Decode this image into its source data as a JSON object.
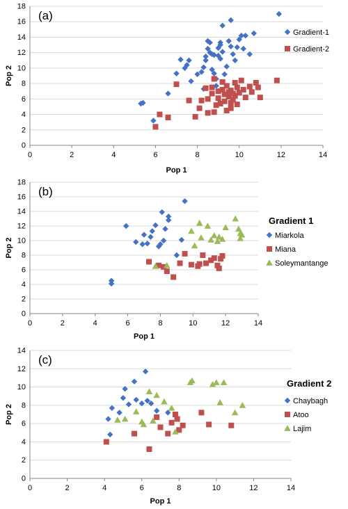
{
  "chart_data": [
    {
      "panel": "(a)",
      "type": "scatter",
      "title": "",
      "xlabel": "Pop 1",
      "ylabel": "Pop 2",
      "xlim": [
        0,
        14
      ],
      "ylim": [
        0,
        18
      ],
      "xticks": [
        0,
        2,
        4,
        6,
        8,
        10,
        12,
        14
      ],
      "yticks": [
        0,
        2,
        4,
        6,
        8,
        10,
        12,
        14,
        16,
        18
      ],
      "legend_title": "",
      "legend_position": "right",
      "series": [
        {
          "name": "Gradient-1",
          "marker": "diamond",
          "color": "#4472C4",
          "points": [
            [
              5.3,
              5.4
            ],
            [
              5.4,
              5.5
            ],
            [
              5.9,
              3.2
            ],
            [
              6.6,
              6.7
            ],
            [
              7.0,
              9.3
            ],
            [
              7.2,
              11.1
            ],
            [
              7.4,
              10.0
            ],
            [
              7.5,
              10.4
            ],
            [
              7.6,
              11.0
            ],
            [
              7.7,
              8.3
            ],
            [
              8.0,
              9.2
            ],
            [
              8.2,
              9.5
            ],
            [
              8.3,
              7.3
            ],
            [
              8.3,
              10.1
            ],
            [
              8.4,
              11.0
            ],
            [
              8.4,
              11.5
            ],
            [
              8.5,
              12.5
            ],
            [
              8.5,
              13.5
            ],
            [
              8.6,
              13.3
            ],
            [
              8.6,
              12.0
            ],
            [
              8.7,
              11.8
            ],
            [
              8.7,
              9.8
            ],
            [
              8.8,
              11.7
            ],
            [
              8.8,
              9.3
            ],
            [
              8.9,
              8.6
            ],
            [
              8.9,
              7.7
            ],
            [
              9.0,
              11.6
            ],
            [
              9.0,
              12.6
            ],
            [
              9.1,
              13.3
            ],
            [
              9.1,
              13.0
            ],
            [
              9.1,
              11.2
            ],
            [
              9.2,
              15.5
            ],
            [
              9.2,
              12.1
            ],
            [
              9.3,
              9.2
            ],
            [
              9.4,
              10.2
            ],
            [
              9.5,
              13.5
            ],
            [
              9.6,
              16.2
            ],
            [
              9.6,
              12.8
            ],
            [
              9.7,
              11.8
            ],
            [
              9.8,
              11.0
            ],
            [
              9.9,
              12.7
            ],
            [
              10.0,
              13.7
            ],
            [
              10.1,
              14.2
            ],
            [
              10.2,
              12.5
            ],
            [
              10.3,
              14.2
            ],
            [
              10.5,
              11.8
            ],
            [
              10.7,
              14.5
            ],
            [
              11.9,
              17.0
            ]
          ]
        },
        {
          "name": "Gradient-2",
          "marker": "square",
          "color": "#C0504D",
          "points": [
            [
              6.0,
              2.4
            ],
            [
              6.2,
              4.0
            ],
            [
              6.6,
              3.6
            ],
            [
              7.0,
              7.9
            ],
            [
              7.6,
              5.8
            ],
            [
              7.9,
              3.7
            ],
            [
              8.1,
              4.8
            ],
            [
              8.2,
              5.8
            ],
            [
              8.4,
              7.4
            ],
            [
              8.5,
              6.0
            ],
            [
              8.5,
              4.2
            ],
            [
              8.7,
              7.5
            ],
            [
              8.7,
              6.7
            ],
            [
              8.8,
              8.6
            ],
            [
              8.8,
              4.3
            ],
            [
              8.9,
              5.2
            ],
            [
              9.0,
              7.0
            ],
            [
              9.0,
              6.1
            ],
            [
              9.1,
              5.4
            ],
            [
              9.2,
              8.2
            ],
            [
              9.2,
              7.2
            ],
            [
              9.3,
              6.6
            ],
            [
              9.3,
              5.7
            ],
            [
              9.4,
              4.5
            ],
            [
              9.4,
              7.7
            ],
            [
              9.5,
              6.9
            ],
            [
              9.5,
              6.3
            ],
            [
              9.6,
              5.5
            ],
            [
              9.6,
              4.8
            ],
            [
              9.6,
              7.1
            ],
            [
              9.7,
              6.7
            ],
            [
              9.7,
              5.9
            ],
            [
              9.8,
              8.1
            ],
            [
              9.8,
              6.4
            ],
            [
              9.9,
              7.5
            ],
            [
              9.9,
              5.3
            ],
            [
              10.0,
              6.8
            ],
            [
              10.1,
              8.4
            ],
            [
              10.2,
              7.2
            ],
            [
              10.3,
              6.2
            ],
            [
              10.5,
              7.6
            ],
            [
              10.6,
              6.9
            ],
            [
              10.8,
              8.1
            ],
            [
              10.9,
              7.5
            ],
            [
              11.0,
              6.2
            ],
            [
              11.8,
              8.4
            ]
          ]
        }
      ]
    },
    {
      "panel": "(b)",
      "type": "scatter",
      "title": "",
      "xlabel": "Pop 1",
      "ylabel": "Pop 2",
      "xlim": [
        0,
        14
      ],
      "ylim": [
        0,
        18
      ],
      "xticks": [
        0,
        2,
        4,
        6,
        8,
        10,
        12,
        14
      ],
      "yticks": [
        0,
        2,
        4,
        6,
        8,
        10,
        12,
        14,
        16,
        18
      ],
      "legend_title": "Gradient 1",
      "legend_position": "right",
      "series": [
        {
          "name": "Miarkola",
          "marker": "diamond",
          "color": "#4472C4",
          "points": [
            [
              5.0,
              4.1
            ],
            [
              5.0,
              4.5
            ],
            [
              5.9,
              12.0
            ],
            [
              6.5,
              9.8
            ],
            [
              6.9,
              9.5
            ],
            [
              7.0,
              10.8
            ],
            [
              7.2,
              9.6
            ],
            [
              7.4,
              10.5
            ],
            [
              7.5,
              11.3
            ],
            [
              7.7,
              12.1
            ],
            [
              7.9,
              9.2
            ],
            [
              8.0,
              9.5
            ],
            [
              8.1,
              13.9
            ],
            [
              8.2,
              10.0
            ],
            [
              8.3,
              11.6
            ],
            [
              8.5,
              13.3
            ],
            [
              8.5,
              12.8
            ],
            [
              9.0,
              8.0
            ],
            [
              9.3,
              10.1
            ],
            [
              9.5,
              15.4
            ]
          ]
        },
        {
          "name": "Miana",
          "marker": "square",
          "color": "#C0504D",
          "points": [
            [
              7.3,
              7.1
            ],
            [
              7.9,
              6.6
            ],
            [
              8.2,
              6.4
            ],
            [
              8.4,
              5.8
            ],
            [
              8.8,
              5.0
            ],
            [
              9.2,
              6.9
            ],
            [
              9.5,
              8.2
            ],
            [
              9.9,
              6.7
            ],
            [
              10.3,
              6.5
            ],
            [
              10.4,
              6.8
            ],
            [
              10.6,
              8.0
            ],
            [
              10.8,
              6.9
            ],
            [
              11.1,
              7.3
            ],
            [
              11.3,
              7.6
            ],
            [
              11.5,
              6.6
            ],
            [
              11.6,
              6.2
            ],
            [
              11.7,
              7.5
            ],
            [
              11.8,
              7.9
            ]
          ]
        },
        {
          "name": "Soleymantange",
          "marker": "triangle",
          "color": "#9BBB59",
          "points": [
            [
              7.7,
              6.5
            ],
            [
              8.4,
              6.6
            ],
            [
              9.9,
              11.3
            ],
            [
              10.1,
              9.3
            ],
            [
              10.4,
              12.4
            ],
            [
              10.5,
              10.4
            ],
            [
              10.9,
              12.0
            ],
            [
              11.1,
              10.1
            ],
            [
              11.3,
              10.7
            ],
            [
              11.5,
              9.9
            ],
            [
              11.6,
              10.5
            ],
            [
              11.8,
              10.2
            ],
            [
              12.0,
              11.8
            ],
            [
              12.6,
              13.0
            ],
            [
              12.8,
              11.6
            ],
            [
              12.9,
              10.3
            ],
            [
              13.0,
              10.8
            ],
            [
              12.9,
              11.0
            ]
          ]
        }
      ]
    },
    {
      "panel": "(c)",
      "type": "scatter",
      "title": "",
      "xlabel": "Pop 1",
      "ylabel": "Pop 2",
      "xlim": [
        0,
        14
      ],
      "ylim": [
        0,
        14
      ],
      "xticks": [
        0,
        2,
        4,
        6,
        8,
        10,
        12,
        14
      ],
      "yticks": [
        0,
        2,
        4,
        6,
        8,
        10,
        12,
        14
      ],
      "legend_title": "Gradient 2",
      "legend_position": "right",
      "series": [
        {
          "name": "Chaybagh",
          "marker": "diamond",
          "color": "#4472C4",
          "points": [
            [
              4.3,
              4.8
            ],
            [
              4.2,
              6.5
            ],
            [
              4.4,
              7.7
            ],
            [
              4.8,
              7.2
            ],
            [
              5.0,
              8.8
            ],
            [
              5.1,
              9.8
            ],
            [
              5.3,
              8.1
            ],
            [
              5.6,
              10.6
            ],
            [
              5.7,
              8.6
            ],
            [
              6.0,
              8.2
            ],
            [
              6.2,
              11.7
            ],
            [
              6.3,
              8.5
            ],
            [
              6.5,
              8.2
            ],
            [
              6.8,
              7.4
            ],
            [
              7.4,
              7.2
            ],
            [
              7.8,
              6.9
            ]
          ]
        },
        {
          "name": "Atoo",
          "marker": "square",
          "color": "#C0504D",
          "points": [
            [
              4.1,
              4.0
            ],
            [
              5.6,
              4.9
            ],
            [
              6.4,
              3.2
            ],
            [
              6.8,
              6.7
            ],
            [
              7.0,
              5.6
            ],
            [
              7.4,
              4.9
            ],
            [
              7.6,
              6.1
            ],
            [
              7.8,
              7.0
            ],
            [
              7.9,
              6.5
            ],
            [
              8.0,
              5.3
            ],
            [
              8.2,
              5.8
            ],
            [
              9.2,
              7.2
            ],
            [
              9.6,
              5.9
            ],
            [
              10.8,
              5.8
            ]
          ]
        },
        {
          "name": "Lajim",
          "marker": "triangle",
          "color": "#9BBB59",
          "points": [
            [
              4.7,
              6.4
            ],
            [
              5.1,
              6.5
            ],
            [
              5.7,
              7.3
            ],
            [
              6.0,
              6.2
            ],
            [
              6.1,
              5.9
            ],
            [
              6.4,
              9.5
            ],
            [
              6.6,
              6.3
            ],
            [
              6.8,
              9.1
            ],
            [
              7.2,
              8.4
            ],
            [
              7.6,
              7.7
            ],
            [
              7.8,
              5.1
            ],
            [
              8.6,
              10.5
            ],
            [
              8.7,
              10.7
            ],
            [
              9.8,
              10.3
            ],
            [
              10.0,
              10.5
            ],
            [
              10.2,
              8.3
            ],
            [
              10.4,
              10.5
            ],
            [
              11.0,
              7.2
            ],
            [
              11.4,
              8.0
            ]
          ]
        }
      ]
    }
  ]
}
